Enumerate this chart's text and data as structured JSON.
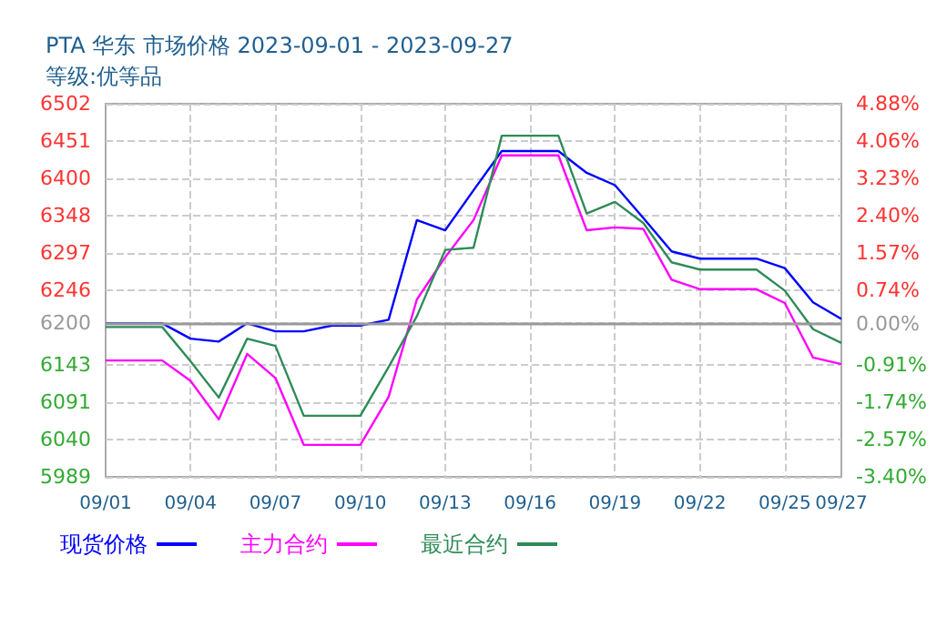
{
  "chart_data": {
    "type": "line",
    "title": "PTA 华东 市场价格 2023-09-01 - 2023-09-27",
    "subtitle": "等级:优等品",
    "categories": [
      "09/01",
      null,
      null,
      "09/04",
      null,
      null,
      "09/07",
      null,
      null,
      "09/10",
      null,
      null,
      "09/13",
      null,
      null,
      "09/16",
      null,
      null,
      "09/19",
      null,
      null,
      "09/22",
      null,
      null,
      "09/25",
      null,
      "09/27"
    ],
    "series": [
      {
        "name": "现货价格",
        "color": "#0000ff",
        "values": [
          6200,
          6200,
          6200,
          6179,
          6175,
          6200,
          6189,
          6189,
          6197,
          6197,
          6205,
          6342,
          6328,
          6383,
          6437,
          6437,
          6437,
          6407,
          6390,
          6345,
          6299,
          6289,
          6289,
          6289,
          6276,
          6229,
          6206
        ]
      },
      {
        "name": "主力合约",
        "color": "#ff00ff",
        "values": [
          6149,
          6149,
          6149,
          6121,
          6068,
          6158,
          6125,
          6033,
          6033,
          6033,
          6099,
          6233,
          6291,
          6342,
          6431,
          6431,
          6431,
          6328,
          6332,
          6330,
          6260,
          6247,
          6247,
          6247,
          6228,
          6153,
          6144
        ]
      },
      {
        "name": "最近合约",
        "color": "#2e8b57",
        "values": [
          6195,
          6195,
          6195,
          6148,
          6098,
          6179,
          6169,
          6073,
          6073,
          6073,
          6140,
          6210,
          6301,
          6304,
          6458,
          6458,
          6458,
          6351,
          6367,
          6338,
          6284,
          6274,
          6274,
          6274,
          6245,
          6192,
          6173
        ]
      }
    ],
    "ylim": [
      5989,
      6502
    ],
    "yticks": [
      6502,
      6451,
      6400,
      6348,
      6297,
      6246,
      6200,
      6143,
      6091,
      6040,
      5989
    ],
    "y2lim": [
      -3.4,
      4.88
    ],
    "y2ticks": [
      {
        "value": 4.88,
        "label": "4.88%"
      },
      {
        "value": 4.06,
        "label": "4.06%"
      },
      {
        "value": 3.23,
        "label": "3.23%"
      },
      {
        "value": 2.4,
        "label": "2.40%"
      },
      {
        "value": 1.57,
        "label": "1.57%"
      },
      {
        "value": 0.74,
        "label": "0.74%"
      },
      {
        "value": 0,
        "label": "0.00%"
      },
      {
        "value": -0.91,
        "label": "-0.91%"
      },
      {
        "value": -1.74,
        "label": "-1.74%"
      },
      {
        "value": -2.57,
        "label": "-2.57%"
      },
      {
        "value": -3.4,
        "label": "-3.40%"
      }
    ],
    "ref_lines": [
      {
        "axis": "y",
        "value": 6200,
        "color": "#999999"
      }
    ],
    "grid": true,
    "legend": "bottom",
    "marker": "none",
    "line_style": "solid"
  }
}
